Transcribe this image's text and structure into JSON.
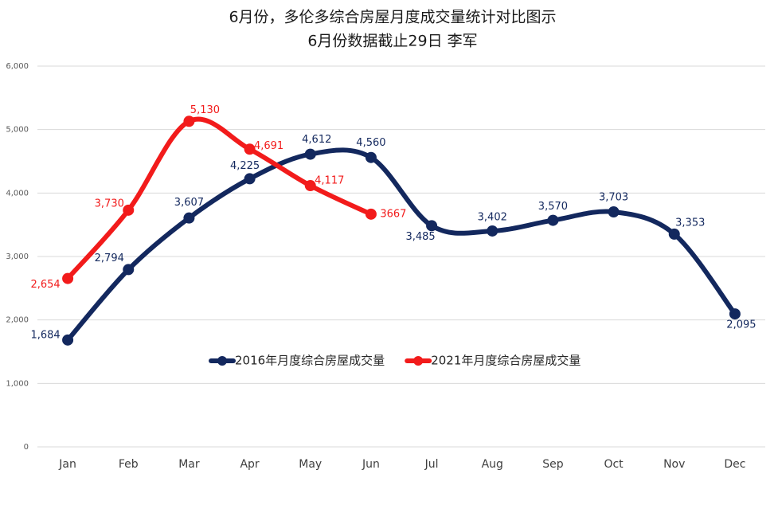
{
  "chart_data": {
    "type": "line",
    "title": "6月份，多伦多综合房屋月度成交量统计对比图示",
    "subtitle": "6月份数据截止29日 李军",
    "categories": [
      "Jan",
      "Feb",
      "Mar",
      "Apr",
      "May",
      "Jun",
      "Jul",
      "Aug",
      "Sep",
      "Oct",
      "Nov",
      "Dec"
    ],
    "series": [
      {
        "name": "2016年月度综合房屋成交量",
        "color": "#13285e",
        "values": [
          1684,
          2794,
          3607,
          4225,
          4612,
          4560,
          3485,
          3402,
          3570,
          3703,
          3353,
          2095
        ],
        "value_labels": [
          "1,684",
          "2,794",
          "3,607",
          "4,225",
          "4,612",
          "4,560",
          "3,485",
          "3,402",
          "3,570",
          "3,703",
          "3,353",
          "2,095"
        ]
      },
      {
        "name": "2021年月度综合房屋成交量",
        "color": "#f21b1b",
        "values": [
          2654,
          3730,
          5130,
          4691,
          4117,
          3667,
          null,
          null,
          null,
          null,
          null,
          null
        ],
        "value_labels": [
          "2,654",
          "3,730",
          "5,130",
          "4,691",
          "4,117",
          "3667",
          null,
          null,
          null,
          null,
          null,
          null
        ]
      }
    ],
    "ylim": [
      0,
      6000
    ],
    "yticks": [
      0,
      {
        "value": 1000,
        "label": "1,000"
      },
      {
        "value": 2000,
        "label": "2,000"
      },
      {
        "value": 3000,
        "label": "3,000"
      },
      {
        "value": 4000,
        "label": "4,000"
      },
      {
        "value": 5000,
        "label": "5,000"
      },
      {
        "value": 6000,
        "label": "6,000"
      }
    ],
    "grid": true,
    "smooth": true
  }
}
